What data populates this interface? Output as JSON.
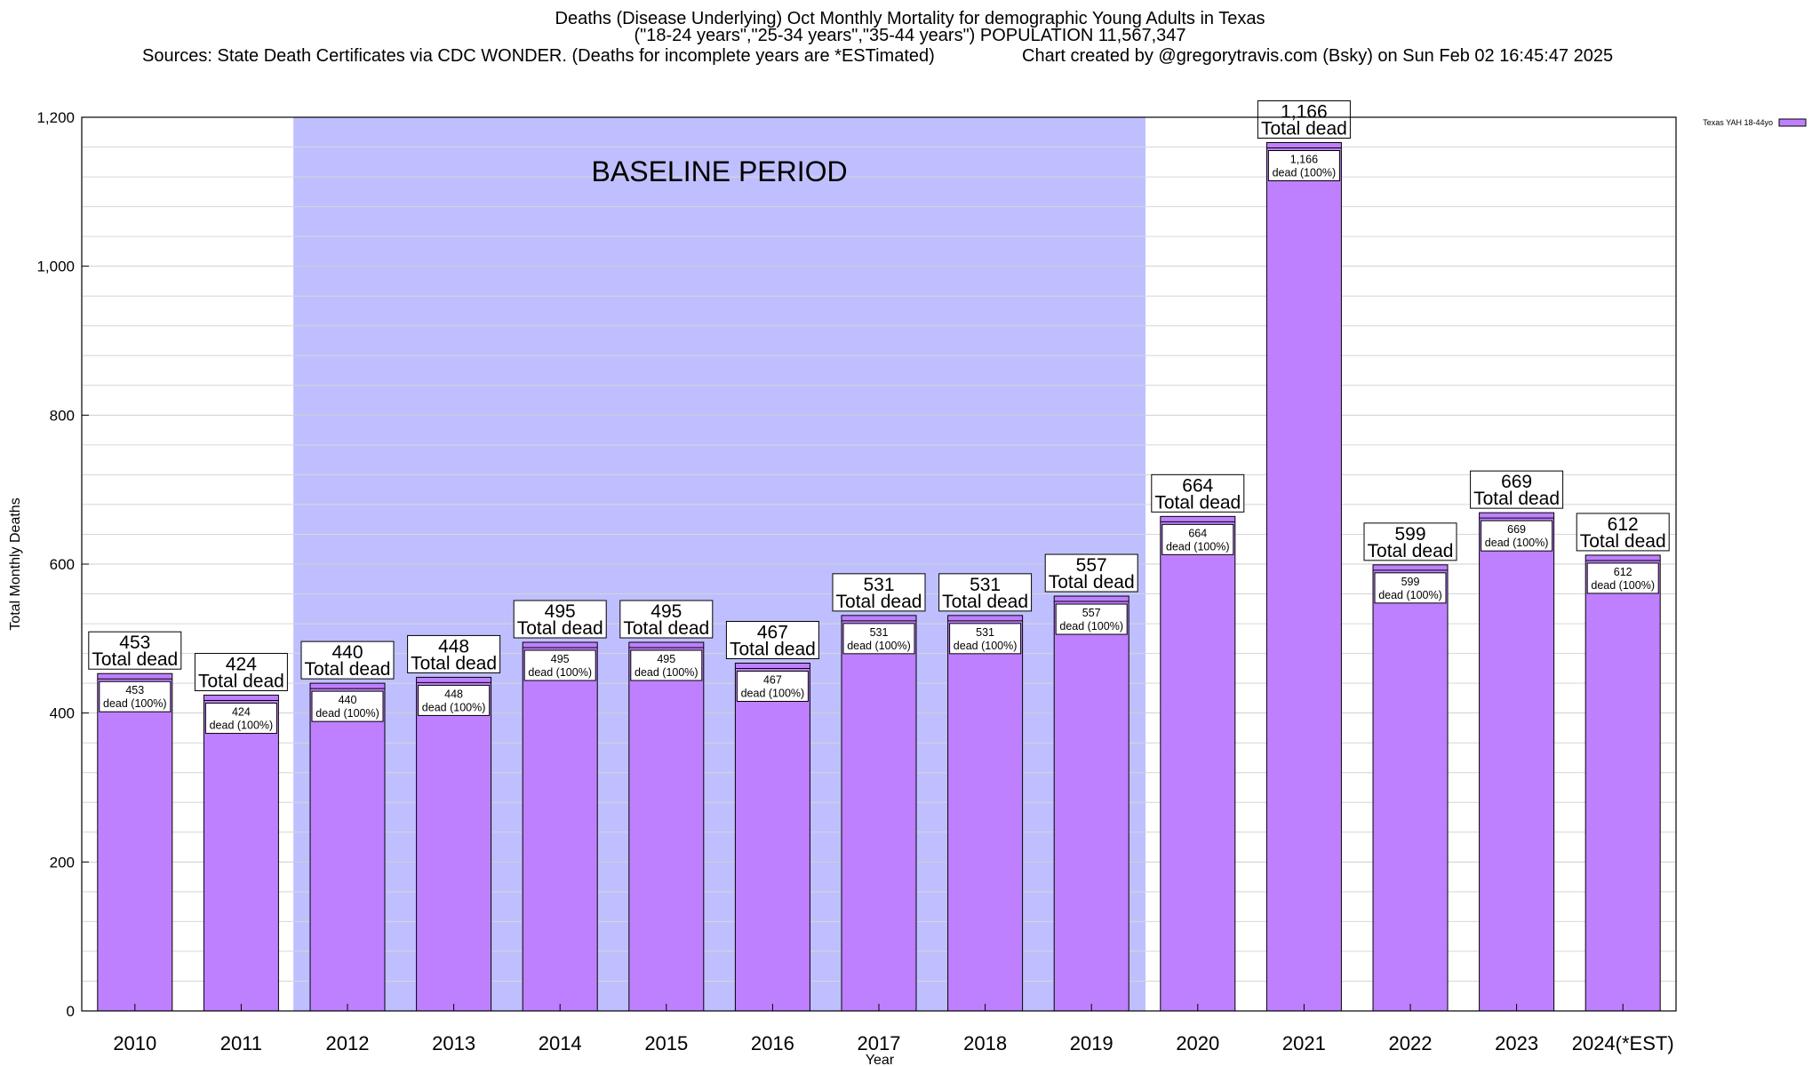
{
  "chart_data": {
    "type": "bar",
    "title": "Deaths (Disease Underlying) Oct Monthly Mortality for demographic Young Adults in Texas",
    "subtitle": "(\"18-24 years\",\"25-34 years\",\"35-44 years\") POPULATION 11,567,347",
    "sources": "Sources: State Death Certificates via CDC WONDER. (Deaths for incomplete years are *ESTimated)",
    "credit": "Chart created by @gregorytravis.com (Bsky) on Sun Feb 02 16:45:47 2025",
    "xlabel": "Year",
    "ylabel": "Total Monthly Deaths",
    "ylim": [
      0,
      1200
    ],
    "yticks": [
      0,
      200,
      400,
      600,
      800,
      1000,
      1200
    ],
    "ytick_labels": [
      "0",
      "200",
      "400",
      "600",
      "800",
      "1,000",
      "1,200"
    ],
    "minor_grid_step": 40,
    "categories": [
      "2010",
      "2011",
      "2012",
      "2013",
      "2014",
      "2015",
      "2016",
      "2017",
      "2018",
      "2019",
      "2020",
      "2021",
      "2022",
      "2023",
      "2024(*EST)"
    ],
    "values": [
      453,
      424,
      440,
      448,
      495,
      495,
      467,
      531,
      531,
      557,
      664,
      1166,
      599,
      669,
      612
    ],
    "value_labels": [
      "453",
      "424",
      "440",
      "448",
      "495",
      "495",
      "467",
      "531",
      "531",
      "557",
      "664",
      "1,166",
      "599",
      "669",
      "612"
    ],
    "top_label_suffix": "Total dead",
    "inner_label_suffix": "dead (100%)",
    "baseline": {
      "label": "BASELINE PERIOD",
      "start": "2012",
      "end": "2019"
    },
    "legend": {
      "entries": [
        {
          "name": "Texas YAH 18-44yo",
          "color": "#bf80ff"
        }
      ],
      "position": "top-right"
    },
    "colors": {
      "bar": "#bf80ff",
      "baseline": "#bfbfff",
      "grid": "#d6d6d6"
    }
  }
}
